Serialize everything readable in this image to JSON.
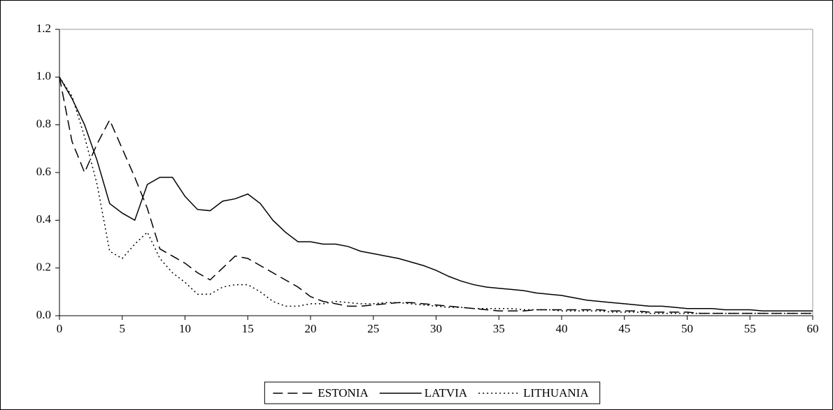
{
  "chart_data": {
    "type": "line",
    "x": [
      0,
      1,
      2,
      3,
      4,
      5,
      6,
      7,
      8,
      9,
      10,
      11,
      12,
      13,
      14,
      15,
      16,
      17,
      18,
      19,
      20,
      21,
      22,
      23,
      24,
      25,
      26,
      27,
      28,
      29,
      30,
      31,
      32,
      33,
      34,
      35,
      36,
      37,
      38,
      39,
      40,
      41,
      42,
      43,
      44,
      45,
      46,
      47,
      48,
      49,
      50,
      51,
      52,
      53,
      54,
      55,
      56,
      57,
      58,
      59,
      60
    ],
    "series": [
      {
        "name": "ESTONIA",
        "color": "#000000",
        "line_style": "dashed",
        "values": [
          1.0,
          0.73,
          0.6,
          0.72,
          0.82,
          0.7,
          0.58,
          0.45,
          0.28,
          0.25,
          0.22,
          0.18,
          0.15,
          0.2,
          0.25,
          0.24,
          0.21,
          0.18,
          0.15,
          0.12,
          0.08,
          0.06,
          0.05,
          0.04,
          0.04,
          0.045,
          0.05,
          0.055,
          0.055,
          0.05,
          0.045,
          0.04,
          0.035,
          0.03,
          0.025,
          0.02,
          0.02,
          0.02,
          0.025,
          0.025,
          0.025,
          0.025,
          0.025,
          0.025,
          0.02,
          0.02,
          0.02,
          0.015,
          0.015,
          0.015,
          0.015,
          0.01,
          0.01,
          0.01,
          0.01,
          0.01,
          0.01,
          0.01,
          0.01,
          0.01,
          0.01
        ]
      },
      {
        "name": "LATVIA",
        "color": "#000000",
        "line_style": "solid",
        "values": [
          1.0,
          0.91,
          0.8,
          0.65,
          0.47,
          0.43,
          0.4,
          0.55,
          0.58,
          0.58,
          0.5,
          0.445,
          0.44,
          0.48,
          0.49,
          0.51,
          0.47,
          0.4,
          0.35,
          0.31,
          0.31,
          0.3,
          0.3,
          0.29,
          0.27,
          0.26,
          0.25,
          0.24,
          0.225,
          0.21,
          0.19,
          0.165,
          0.145,
          0.13,
          0.12,
          0.115,
          0.11,
          0.105,
          0.095,
          0.09,
          0.085,
          0.075,
          0.065,
          0.06,
          0.055,
          0.05,
          0.045,
          0.04,
          0.04,
          0.035,
          0.03,
          0.03,
          0.03,
          0.025,
          0.025,
          0.025,
          0.02,
          0.02,
          0.02,
          0.02,
          0.02
        ]
      },
      {
        "name": "LITHUANIA",
        "color": "#000000",
        "line_style": "dotted",
        "values": [
          1.0,
          0.92,
          0.75,
          0.55,
          0.27,
          0.24,
          0.3,
          0.35,
          0.24,
          0.18,
          0.14,
          0.09,
          0.09,
          0.12,
          0.13,
          0.13,
          0.1,
          0.06,
          0.04,
          0.04,
          0.05,
          0.05,
          0.06,
          0.055,
          0.05,
          0.05,
          0.055,
          0.055,
          0.05,
          0.045,
          0.04,
          0.035,
          0.035,
          0.03,
          0.03,
          0.03,
          0.03,
          0.025,
          0.025,
          0.025,
          0.02,
          0.02,
          0.02,
          0.02,
          0.015,
          0.015,
          0.015,
          0.01,
          0.01,
          0.01,
          0.01,
          0.01,
          0.01,
          0.01,
          0.01,
          0.01,
          0.01,
          0.01,
          0.01,
          0.01,
          0.01
        ]
      }
    ],
    "xlim": [
      0,
      60
    ],
    "xticks": [
      0,
      5,
      10,
      15,
      20,
      25,
      30,
      35,
      40,
      45,
      50,
      55,
      60
    ],
    "ylim": [
      0,
      1.2
    ],
    "yticks": [
      {
        "value": 0,
        "label": "0.0"
      },
      0.2,
      0.4,
      0.6,
      0.8,
      {
        "value": 1,
        "label": "1.0"
      },
      1.2
    ],
    "grid": false,
    "legend": "bottom"
  }
}
